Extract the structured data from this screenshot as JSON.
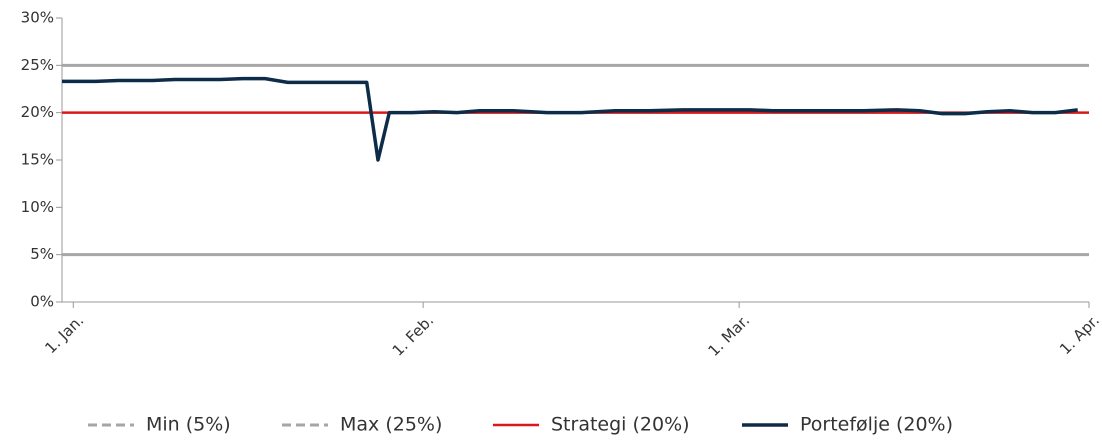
{
  "chart_data": {
    "type": "line",
    "xlim": [
      -1,
      90
    ],
    "xticks": [
      {
        "value": 0,
        "label": "1. Jan."
      },
      {
        "value": 31,
        "label": "1. Feb."
      },
      {
        "value": 59,
        "label": "1. Mar."
      },
      {
        "value": 90,
        "label": "1. Apr."
      }
    ],
    "ylim": [
      0,
      30
    ],
    "yticks": [
      {
        "value": 0,
        "label": "0%"
      },
      {
        "value": 5,
        "label": "5%"
      },
      {
        "value": 10,
        "label": "10%"
      },
      {
        "value": 15,
        "label": "15%"
      },
      {
        "value": 20,
        "label": "20%"
      },
      {
        "value": 25,
        "label": "25%"
      },
      {
        "value": 30,
        "label": "30%"
      }
    ],
    "series": [
      {
        "name": "Min (5%)",
        "color": "#a6a6a6",
        "dash": true,
        "width": 3,
        "x": [
          -1,
          90
        ],
        "values": [
          5,
          5
        ]
      },
      {
        "name": "Max (25%)",
        "color": "#a6a6a6",
        "dash": true,
        "width": 3,
        "x": [
          -1,
          90
        ],
        "values": [
          25,
          25
        ]
      },
      {
        "name": "Strategi (20%)",
        "color": "#d7191c",
        "dash": false,
        "width": 2.5,
        "x": [
          -1,
          90
        ],
        "values": [
          20,
          20
        ]
      },
      {
        "name": "Portefølje (20%)",
        "color": "#0d2c4a",
        "dash": false,
        "width": 3.5,
        "x": [
          -1,
          2,
          4,
          7,
          9,
          13,
          15,
          17,
          19,
          22,
          26,
          27,
          28,
          30,
          32,
          34,
          36,
          39,
          42,
          45,
          48,
          51,
          54,
          57,
          60,
          62,
          64,
          67,
          70,
          73,
          75,
          77,
          79,
          81,
          83,
          85,
          87,
          89
        ],
        "values": [
          23.3,
          23.3,
          23.4,
          23.4,
          23.5,
          23.5,
          23.6,
          23.6,
          23.2,
          23.2,
          23.2,
          15.0,
          20.0,
          20.0,
          20.1,
          20.0,
          20.2,
          20.2,
          20.0,
          20.0,
          20.2,
          20.2,
          20.3,
          20.3,
          20.3,
          20.2,
          20.2,
          20.2,
          20.2,
          20.3,
          20.2,
          19.9,
          19.9,
          20.1,
          20.2,
          20.0,
          20.0,
          20.3
        ]
      }
    ]
  }
}
